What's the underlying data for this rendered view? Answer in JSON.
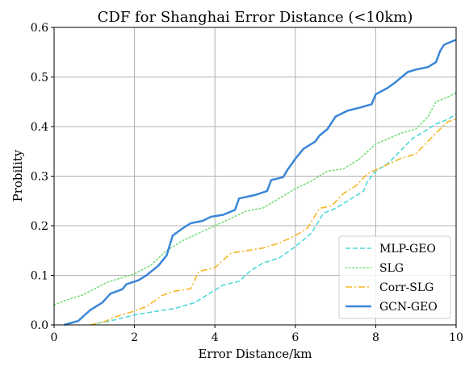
{
  "chart_data": {
    "type": "line",
    "title": "CDF for Shanghai Error Distance (<10km)",
    "xlabel": "Error Distance/km",
    "ylabel": "Probility",
    "xlim": [
      0,
      10
    ],
    "ylim": [
      0,
      0.6
    ],
    "xticks": [
      "0",
      "2",
      "4",
      "6",
      "8",
      "10"
    ],
    "yticks": [
      "0.0",
      "0.1",
      "0.2",
      "0.3",
      "0.4",
      "0.5",
      "0.6"
    ],
    "grid": true,
    "legend_position": "bottom-right",
    "series": [
      {
        "name": "MLP-GEO",
        "color": "#4fd9d9",
        "dash": "dashed",
        "points": [
          [
            0.9,
            0.0
          ],
          [
            1.0,
            0.002
          ],
          [
            1.5,
            0.01
          ],
          [
            2.0,
            0.02
          ],
          [
            2.5,
            0.027
          ],
          [
            3.0,
            0.033
          ],
          [
            3.5,
            0.045
          ],
          [
            3.8,
            0.06
          ],
          [
            4.2,
            0.08
          ],
          [
            4.6,
            0.088
          ],
          [
            4.9,
            0.11
          ],
          [
            5.2,
            0.125
          ],
          [
            5.6,
            0.135
          ],
          [
            6.0,
            0.158
          ],
          [
            6.4,
            0.185
          ],
          [
            6.7,
            0.225
          ],
          [
            7.0,
            0.235
          ],
          [
            7.4,
            0.255
          ],
          [
            7.7,
            0.27
          ],
          [
            7.8,
            0.29
          ],
          [
            8.0,
            0.31
          ],
          [
            8.3,
            0.325
          ],
          [
            8.6,
            0.35
          ],
          [
            8.9,
            0.375
          ],
          [
            9.2,
            0.39
          ],
          [
            9.5,
            0.405
          ],
          [
            9.8,
            0.415
          ],
          [
            10.0,
            0.425
          ]
        ]
      },
      {
        "name": "SLG",
        "color": "#77dd77",
        "dash": "dotted",
        "points": [
          [
            0.0,
            0.04
          ],
          [
            0.3,
            0.05
          ],
          [
            0.7,
            0.06
          ],
          [
            1.3,
            0.085
          ],
          [
            1.6,
            0.093
          ],
          [
            2.0,
            0.103
          ],
          [
            2.4,
            0.12
          ],
          [
            2.8,
            0.15
          ],
          [
            3.2,
            0.17
          ],
          [
            3.6,
            0.185
          ],
          [
            4.0,
            0.2
          ],
          [
            4.4,
            0.215
          ],
          [
            4.8,
            0.23
          ],
          [
            5.2,
            0.236
          ],
          [
            5.6,
            0.255
          ],
          [
            6.0,
            0.275
          ],
          [
            6.4,
            0.29
          ],
          [
            6.8,
            0.31
          ],
          [
            7.2,
            0.315
          ],
          [
            7.6,
            0.335
          ],
          [
            8.0,
            0.365
          ],
          [
            8.3,
            0.375
          ],
          [
            8.6,
            0.386
          ],
          [
            9.0,
            0.395
          ],
          [
            9.3,
            0.42
          ],
          [
            9.5,
            0.45
          ],
          [
            9.8,
            0.46
          ],
          [
            10.0,
            0.468
          ]
        ]
      },
      {
        "name": "Corr-SLG",
        "color": "#f5b728",
        "dash": "dashdot",
        "points": [
          [
            0.9,
            0.0
          ],
          [
            1.2,
            0.005
          ],
          [
            1.6,
            0.018
          ],
          [
            2.0,
            0.028
          ],
          [
            2.3,
            0.037
          ],
          [
            2.7,
            0.06
          ],
          [
            3.0,
            0.068
          ],
          [
            3.4,
            0.073
          ],
          [
            3.6,
            0.108
          ],
          [
            4.0,
            0.115
          ],
          [
            4.4,
            0.145
          ],
          [
            4.8,
            0.15
          ],
          [
            5.2,
            0.155
          ],
          [
            5.6,
            0.165
          ],
          [
            6.0,
            0.18
          ],
          [
            6.3,
            0.195
          ],
          [
            6.6,
            0.235
          ],
          [
            6.9,
            0.24
          ],
          [
            7.2,
            0.265
          ],
          [
            7.5,
            0.28
          ],
          [
            7.8,
            0.305
          ],
          [
            8.2,
            0.32
          ],
          [
            8.6,
            0.335
          ],
          [
            9.0,
            0.345
          ],
          [
            9.3,
            0.37
          ],
          [
            9.6,
            0.395
          ],
          [
            9.8,
            0.41
          ],
          [
            10.0,
            0.415
          ]
        ]
      },
      {
        "name": "GCN-GEO",
        "color": "#3a86d8",
        "dash": "solid",
        "points": [
          [
            0.25,
            0.0
          ],
          [
            0.6,
            0.008
          ],
          [
            0.9,
            0.03
          ],
          [
            1.2,
            0.045
          ],
          [
            1.4,
            0.063
          ],
          [
            1.7,
            0.072
          ],
          [
            1.8,
            0.082
          ],
          [
            2.1,
            0.09
          ],
          [
            2.3,
            0.1
          ],
          [
            2.6,
            0.12
          ],
          [
            2.8,
            0.14
          ],
          [
            2.95,
            0.18
          ],
          [
            3.2,
            0.195
          ],
          [
            3.4,
            0.205
          ],
          [
            3.7,
            0.21
          ],
          [
            3.9,
            0.218
          ],
          [
            4.2,
            0.222
          ],
          [
            4.5,
            0.232
          ],
          [
            4.6,
            0.255
          ],
          [
            5.0,
            0.262
          ],
          [
            5.3,
            0.27
          ],
          [
            5.4,
            0.292
          ],
          [
            5.7,
            0.298
          ],
          [
            5.8,
            0.312
          ],
          [
            6.0,
            0.335
          ],
          [
            6.2,
            0.355
          ],
          [
            6.5,
            0.37
          ],
          [
            6.6,
            0.382
          ],
          [
            6.8,
            0.395
          ],
          [
            7.0,
            0.42
          ],
          [
            7.3,
            0.432
          ],
          [
            7.6,
            0.438
          ],
          [
            7.9,
            0.445
          ],
          [
            8.0,
            0.465
          ],
          [
            8.3,
            0.478
          ],
          [
            8.5,
            0.49
          ],
          [
            8.8,
            0.51
          ],
          [
            9.0,
            0.515
          ],
          [
            9.3,
            0.52
          ],
          [
            9.5,
            0.53
          ],
          [
            9.6,
            0.552
          ],
          [
            9.7,
            0.565
          ],
          [
            9.85,
            0.57
          ],
          [
            10.0,
            0.575
          ]
        ]
      }
    ]
  }
}
